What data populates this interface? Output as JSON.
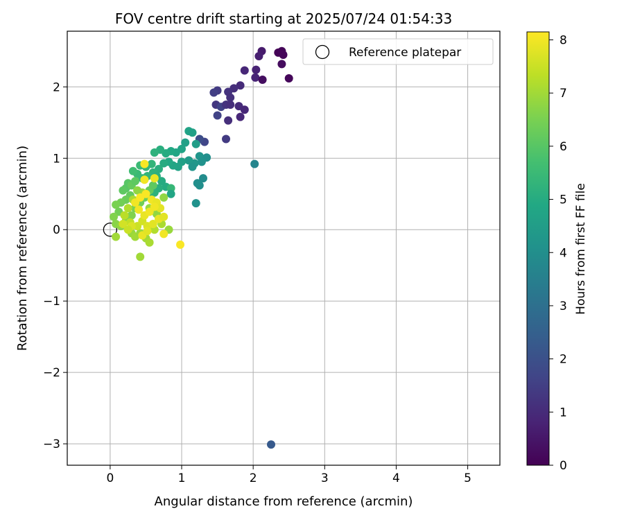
{
  "chart_data": {
    "type": "scatter",
    "title": "FOV centre drift starting at 2025/07/24 01:54:33",
    "xlabel": "Angular distance from reference (arcmin)",
    "ylabel": "Rotation from reference (arcmin)",
    "xlim": [
      -0.6,
      5.45
    ],
    "ylim": [
      -3.3,
      2.78
    ],
    "xticks": [
      0,
      1,
      2,
      3,
      4,
      5
    ],
    "yticks": [
      -3,
      -2,
      -1,
      0,
      1,
      2
    ],
    "xtick_labels": [
      "0",
      "1",
      "2",
      "3",
      "4",
      "5"
    ],
    "ytick_labels": [
      "−3",
      "−2",
      "−1",
      "0",
      "1",
      "2"
    ],
    "grid": true,
    "legend": {
      "placement": "top-right",
      "entries": [
        "Reference platepar"
      ]
    },
    "reference_point": {
      "name": "Reference platepar",
      "x": 0,
      "y": 0
    },
    "colorbar": {
      "label": "Hours from first FF file",
      "colormap": "viridis",
      "range": [
        0,
        8.15
      ],
      "ticks": [
        0,
        1,
        2,
        3,
        4,
        5,
        6,
        7,
        8
      ],
      "tick_labels": [
        "0",
        "1",
        "2",
        "3",
        "4",
        "5",
        "6",
        "7",
        "8"
      ]
    },
    "series": [
      {
        "name": "",
        "columns": [
          "x",
          "y",
          "hours"
        ],
        "points": [
          [
            2.35,
            2.48,
            0.05
          ],
          [
            2.4,
            2.5,
            0.1
          ],
          [
            2.42,
            2.45,
            0.12
          ],
          [
            2.5,
            2.12,
            0.15
          ],
          [
            2.4,
            2.32,
            0.25
          ],
          [
            2.12,
            2.5,
            0.6
          ],
          [
            2.08,
            2.43,
            0.7
          ],
          [
            2.04,
            2.24,
            0.8
          ],
          [
            2.03,
            2.13,
            0.85
          ],
          [
            2.13,
            2.1,
            0.3
          ],
          [
            1.88,
            2.23,
            0.9
          ],
          [
            1.82,
            2.02,
            1.0
          ],
          [
            1.73,
            1.98,
            1.1
          ],
          [
            1.65,
            1.93,
            1.2
          ],
          [
            1.68,
            1.85,
            1.15
          ],
          [
            1.5,
            1.95,
            1.4
          ],
          [
            1.45,
            1.92,
            1.5
          ],
          [
            1.48,
            1.75,
            1.3
          ],
          [
            1.55,
            1.72,
            1.6
          ],
          [
            1.62,
            1.75,
            1.2
          ],
          [
            1.68,
            1.75,
            1.1
          ],
          [
            1.8,
            1.73,
            1.0
          ],
          [
            1.88,
            1.68,
            0.9
          ],
          [
            1.5,
            1.6,
            1.6
          ],
          [
            1.65,
            1.53,
            1.1
          ],
          [
            1.82,
            1.58,
            0.9
          ],
          [
            1.62,
            1.27,
            1.4
          ],
          [
            1.32,
            1.23,
            1.7
          ],
          [
            1.25,
            1.27,
            1.9
          ],
          [
            2.02,
            0.92,
            3.7
          ],
          [
            2.25,
            -3.01,
            2.3
          ],
          [
            1.1,
            1.38,
            4.7
          ],
          [
            1.15,
            1.36,
            4.6
          ],
          [
            1.2,
            1.2,
            4.5
          ],
          [
            1.05,
            1.22,
            4.6
          ],
          [
            1.0,
            1.13,
            4.7
          ],
          [
            0.92,
            1.08,
            4.8
          ],
          [
            0.85,
            1.1,
            4.9
          ],
          [
            0.78,
            1.07,
            5.0
          ],
          [
            0.7,
            1.12,
            5.1
          ],
          [
            0.62,
            1.08,
            5.2
          ],
          [
            1.25,
            1.03,
            4.2
          ],
          [
            1.35,
            1.01,
            4.0
          ],
          [
            1.28,
            0.95,
            4.1
          ],
          [
            1.18,
            0.93,
            4.3
          ],
          [
            1.1,
            0.97,
            4.4
          ],
          [
            1.0,
            0.95,
            4.6
          ],
          [
            0.95,
            0.88,
            4.7
          ],
          [
            0.88,
            0.9,
            4.8
          ],
          [
            0.82,
            0.95,
            4.9
          ],
          [
            0.75,
            0.93,
            5.0
          ],
          [
            1.15,
            0.88,
            4.2
          ],
          [
            1.22,
            0.65,
            4.0
          ],
          [
            1.25,
            0.62,
            4.0
          ],
          [
            1.3,
            0.72,
            3.9
          ],
          [
            1.2,
            0.37,
            4.1
          ],
          [
            0.68,
            0.85,
            5.1
          ],
          [
            0.6,
            0.8,
            5.2
          ],
          [
            0.52,
            0.75,
            5.3
          ],
          [
            0.45,
            0.72,
            5.4
          ],
          [
            0.38,
            0.78,
            5.5
          ],
          [
            0.32,
            0.82,
            5.6
          ],
          [
            0.42,
            0.9,
            5.5
          ],
          [
            0.5,
            0.88,
            5.4
          ],
          [
            0.58,
            0.92,
            5.3
          ],
          [
            0.65,
            0.75,
            5.1
          ],
          [
            0.72,
            0.68,
            5.0
          ],
          [
            0.78,
            0.6,
            5.0
          ],
          [
            0.68,
            0.58,
            5.1
          ],
          [
            0.62,
            0.52,
            5.2
          ],
          [
            0.55,
            0.48,
            5.2
          ],
          [
            0.85,
            0.58,
            5.4
          ],
          [
            0.85,
            0.5,
            4.8
          ],
          [
            0.22,
            0.58,
            6.0
          ],
          [
            0.18,
            0.55,
            6.1
          ],
          [
            0.25,
            0.65,
            6.0
          ],
          [
            0.3,
            0.62,
            6.2
          ],
          [
            0.35,
            0.68,
            6.1
          ],
          [
            0.28,
            0.48,
            6.2
          ],
          [
            0.22,
            0.42,
            6.3
          ],
          [
            0.15,
            0.38,
            6.4
          ],
          [
            0.08,
            0.35,
            6.5
          ],
          [
            0.12,
            0.25,
            6.4
          ],
          [
            0.05,
            0.18,
            6.6
          ],
          [
            0.08,
            0.08,
            6.7
          ],
          [
            0.15,
            0.05,
            6.8
          ],
          [
            0.22,
            0.12,
            6.7
          ],
          [
            0.3,
            0.2,
            6.6
          ],
          [
            0.35,
            0.3,
            6.5
          ],
          [
            0.42,
            0.38,
            6.4
          ],
          [
            0.48,
            0.45,
            6.3
          ],
          [
            0.55,
            0.55,
            6.2
          ],
          [
            0.6,
            0.62,
            6.1
          ],
          [
            0.3,
            -0.05,
            6.9
          ],
          [
            0.35,
            -0.1,
            7.0
          ],
          [
            0.42,
            -0.05,
            6.9
          ],
          [
            0.5,
            -0.12,
            7.0
          ],
          [
            0.55,
            -0.18,
            7.1
          ],
          [
            0.42,
            -0.38,
            7.0
          ],
          [
            0.08,
            -0.1,
            7.0
          ],
          [
            0.62,
            0.0,
            7.2
          ],
          [
            0.72,
            0.08,
            7.1
          ],
          [
            0.82,
            0.0,
            6.9
          ],
          [
            0.65,
            0.22,
            6.8
          ],
          [
            0.75,
            0.45,
            6.8
          ],
          [
            0.55,
            0.3,
            6.9
          ],
          [
            0.25,
            0.3,
            7.2
          ],
          [
            0.45,
            0.52,
            7.0
          ],
          [
            0.38,
            0.55,
            6.8
          ],
          [
            0.32,
            0.42,
            7.1
          ],
          [
            0.2,
            0.2,
            7.3
          ],
          [
            0.28,
            0.1,
            7.4
          ],
          [
            0.38,
            0.05,
            7.5
          ],
          [
            0.45,
            0.12,
            7.6
          ],
          [
            0.52,
            0.05,
            7.7
          ],
          [
            0.6,
            0.08,
            7.8
          ],
          [
            0.68,
            0.15,
            7.9
          ],
          [
            0.48,
            0.2,
            7.9
          ],
          [
            0.4,
            0.28,
            8.0
          ],
          [
            0.35,
            0.38,
            8.0
          ],
          [
            0.42,
            0.45,
            8.1
          ],
          [
            0.5,
            0.5,
            8.1
          ],
          [
            0.58,
            0.42,
            8.0
          ],
          [
            0.65,
            0.38,
            7.9
          ],
          [
            0.7,
            0.3,
            7.8
          ],
          [
            0.55,
            0.25,
            8.0
          ],
          [
            0.62,
            0.32,
            8.0
          ],
          [
            0.48,
            0.92,
            8.1
          ],
          [
            0.48,
            0.7,
            8.0
          ],
          [
            0.62,
            0.72,
            7.9
          ],
          [
            0.75,
            0.18,
            7.8
          ],
          [
            0.75,
            -0.06,
            8.0
          ],
          [
            0.98,
            -0.21,
            8.1
          ],
          [
            0.45,
            -0.08,
            7.9
          ],
          [
            0.52,
            -0.02,
            7.8
          ],
          [
            0.3,
            0.05,
            7.7
          ],
          [
            0.18,
            0.08,
            7.6
          ],
          [
            0.25,
            0.0,
            7.5
          ]
        ]
      }
    ]
  }
}
